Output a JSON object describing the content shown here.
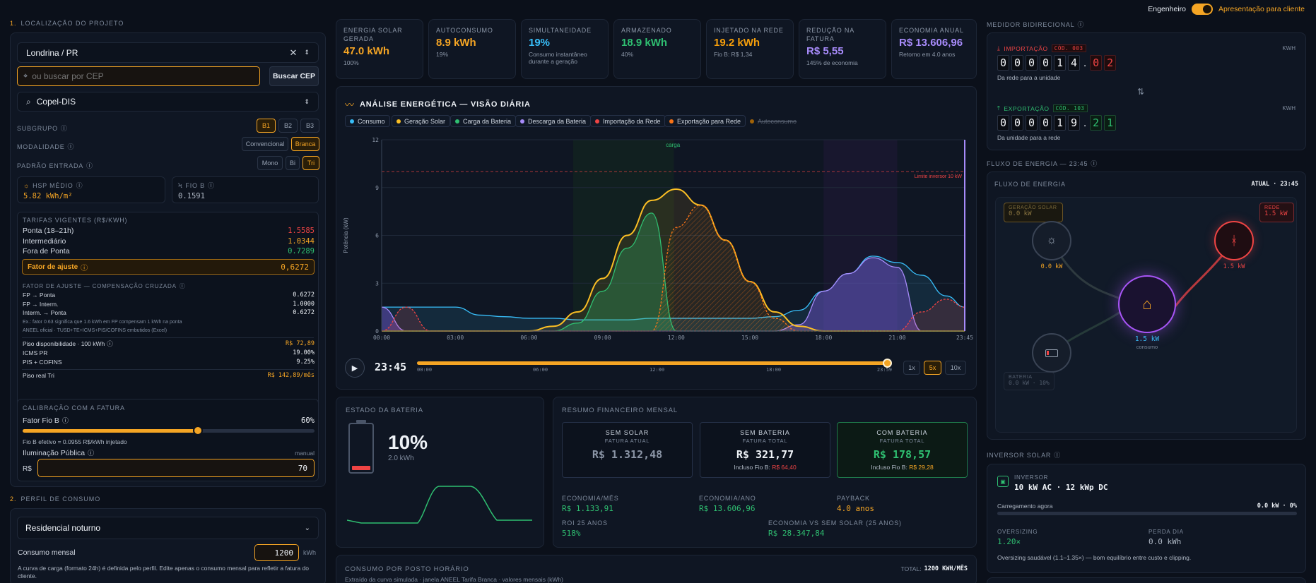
{
  "header": {
    "toggle_label": "Engenheiro",
    "mode_label": "Apresentação para cliente"
  },
  "left": {
    "sec1_num": "1.",
    "sec1_title": "LOCALIZAÇÃO DO PROJETO",
    "city": "Londrina / PR",
    "cep_placeholder": "ou buscar por CEP",
    "cep_button": "Buscar CEP",
    "utility": "Copel-DIS",
    "subgrupo_label": "SUBGRUPO",
    "subgrupo_opts": [
      "B1",
      "B2",
      "B3"
    ],
    "modalidade_label": "MODALIDADE",
    "modalidade_opts": [
      "Convencional",
      "Branca"
    ],
    "padrao_label": "PADRÃO ENTRADA",
    "padrao_opts": [
      "Mono",
      "Bi",
      "Tri"
    ],
    "hsp_label": "HSP MÉDIO",
    "hsp_value": "5.82 kWh/m²",
    "fiob_label": "FIO B",
    "fiob_value": "0.1591",
    "tarifas_title": "TARIFAS VIGENTES (R$/KWH)",
    "tarifas": [
      {
        "name": "Ponta (18–21h)",
        "value": "1.5585"
      },
      {
        "name": "Intermediário",
        "value": "1.0344"
      },
      {
        "name": "Fora de Ponta",
        "value": "0.7289"
      }
    ],
    "fator_label": "Fator de ajuste",
    "fator_value": "0,6272",
    "cruzada_title": "FATOR DE AJUSTE — COMPENSAÇÃO CRUZADA",
    "cruzada": [
      {
        "name": "FP → Ponta",
        "value": "0.6272"
      },
      {
        "name": "FP → Interm.",
        "value": "1.0000"
      },
      {
        "name": "Interm. → Ponta",
        "value": "0.6272"
      }
    ],
    "cruzada_note1": "Ex.: fator 0.63 significa que 1.6 kWh em FP compensam 1 kWh na ponta",
    "cruzada_note2": "ANEEL oficial · TUSD+TE+ICMS+PIS/COFINS embutidos (Excel)",
    "piso_label": "Piso disponibilidade · 100 kWh",
    "piso_value": "R$ 72,89",
    "icms_label": "ICMS PR",
    "icms_value": "19.00%",
    "pis_label": "PIS + COFINS",
    "pis_value": "9.25%",
    "pisoreal_label": "Piso real Tri",
    "pisoreal_value": "R$ 142,89/mês",
    "calib_title": "CALIBRAÇÃO COM A FATURA",
    "fatorfiob_label": "Fator Fio B",
    "fatorfiob_value": "60%",
    "fatorfiob_fraction": 0.6,
    "fiob_efetivo": "Fio B efetivo = 0.0955 R$/kWh injetado",
    "ilum_label": "Iluminação Pública",
    "ilum_mode": "manual",
    "ilum_prefix": "R$",
    "ilum_value": "70",
    "sec2_num": "2.",
    "sec2_title": "PERFIL DE CONSUMO",
    "perfil": "Residencial noturno",
    "consumo_label": "Consumo mensal",
    "consumo_value": "1200",
    "consumo_unit": "kWh",
    "consumo_note": "A curva de carga (formato 24h) é definida pelo perfil. Edite apenas o consumo mensal para refletir a fatura do cliente."
  },
  "kpis": [
    {
      "title": "ENERGIA SOLAR GERADA",
      "value": "47.0 kWh",
      "sub": "100%",
      "color": "#f5a524"
    },
    {
      "title": "AUTOCONSUMO",
      "value": "8.9 kWh",
      "sub": "19%",
      "color": "#f5a524"
    },
    {
      "title": "SIMULTANEIDADE",
      "value": "19%",
      "sub": "Consumo instantâneo durante a geração",
      "color": "#38bdf8"
    },
    {
      "title": "ARMAZENADO",
      "value": "18.9 kWh",
      "sub": "40%",
      "color": "#2fbf71"
    },
    {
      "title": "INJETADO NA REDE",
      "value": "19.2 kWh",
      "sub": "Fio B: R$ 1,34",
      "color": "#f59e0b"
    },
    {
      "title": "REDUÇÃO NA FATURA",
      "value": "R$ 5,55",
      "sub": "145% de economia",
      "color": "#a78bfa"
    },
    {
      "title": "ECONOMIA ANUAL",
      "value": "R$ 13.606,96",
      "sub": "Retorno em 4.0 anos",
      "color": "#a78bfa"
    }
  ],
  "chart": {
    "title": "ANÁLISE ENERGÉTICA — VISÃO DIÁRIA",
    "legend": [
      {
        "name": "Consumo",
        "color": "#38bdf8"
      },
      {
        "name": "Geração Solar",
        "color": "#fbbf24"
      },
      {
        "name": "Carga da Bateria",
        "color": "#2fbf71"
      },
      {
        "name": "Descarga da Bateria",
        "color": "#a78bfa"
      },
      {
        "name": "Importação da Rede",
        "color": "#ef4444"
      },
      {
        "name": "Exportação para Rede",
        "color": "#f97316"
      },
      {
        "name": "Autoconsumo",
        "color": "#a16207"
      }
    ],
    "ylabel": "Potência (kW)",
    "limit_label": "Limite inversor 10 kW",
    "band_label": "carga",
    "time": "23:45",
    "timeline_ticks": [
      "00:00",
      "06:00",
      "12:00",
      "18:00",
      "23:59"
    ],
    "speeds": [
      "1x",
      "5x",
      "10x"
    ],
    "progress_fraction": 0.99
  },
  "chart_data": {
    "type": "area",
    "x": [
      "00:00",
      "01:00",
      "02:00",
      "03:00",
      "04:00",
      "05:00",
      "06:00",
      "07:00",
      "08:00",
      "09:00",
      "10:00",
      "11:00",
      "12:00",
      "13:00",
      "14:00",
      "15:00",
      "16:00",
      "17:00",
      "18:00",
      "19:00",
      "20:00",
      "21:00",
      "22:00",
      "23:00",
      "23:45"
    ],
    "xticks": [
      "00:00",
      "03:00",
      "06:00",
      "09:00",
      "12:00",
      "15:00",
      "18:00",
      "21:00",
      "23:45"
    ],
    "ylim": [
      0,
      12
    ],
    "yticks": [
      0,
      3,
      6,
      9,
      12
    ],
    "limit": 10,
    "series": [
      {
        "name": "Consumo",
        "values": [
          1.5,
          1.5,
          1.5,
          1.5,
          1.0,
          0.9,
          0.8,
          0.8,
          0.7,
          0.7,
          0.7,
          0.8,
          0.8,
          0.8,
          0.8,
          0.8,
          0.9,
          1.3,
          2.5,
          3.6,
          4.7,
          4.3,
          3.5,
          2.2,
          1.5
        ]
      },
      {
        "name": "Geração Solar",
        "values": [
          0,
          0,
          0,
          0,
          0,
          0,
          0,
          0.3,
          1.2,
          3.3,
          6.0,
          8.2,
          8.9,
          7.9,
          5.7,
          3.1,
          1.2,
          0.3,
          0,
          0,
          0,
          0,
          0,
          0,
          0
        ]
      },
      {
        "name": "Carga da Bateria",
        "values": [
          0,
          0,
          0,
          0,
          0,
          0,
          0,
          0,
          0.5,
          2.5,
          5.2,
          7.4,
          0,
          0,
          0,
          0,
          0,
          0,
          0,
          0,
          0,
          0,
          0,
          0,
          0
        ]
      },
      {
        "name": "Descarga da Bateria",
        "values": [
          1.5,
          0,
          0,
          0,
          0,
          0,
          0,
          0,
          0,
          0,
          0,
          0,
          0,
          0,
          0,
          0,
          0,
          0.4,
          2.5,
          3.6,
          4.6,
          4.0,
          0,
          0,
          0
        ]
      },
      {
        "name": "Importação da Rede",
        "values": [
          0,
          1.5,
          0,
          0,
          0,
          0,
          0,
          0,
          0,
          0,
          0,
          0,
          0,
          0,
          0,
          0,
          0,
          0,
          0,
          0,
          0,
          0,
          1.2,
          2.0,
          1.5
        ]
      },
      {
        "name": "Exportação para Rede",
        "values": [
          0,
          0,
          0,
          0,
          0,
          0,
          0,
          0,
          0,
          0,
          0,
          0,
          6.5,
          7.9,
          5.7,
          3.1,
          0.8,
          0,
          0,
          0,
          0,
          0,
          0,
          0,
          0
        ]
      }
    ]
  },
  "meter": {
    "title": "MEDIDOR BIDIRECIONAL",
    "unit": "KWH",
    "imp_label": "IMPORTAÇÃO",
    "imp_code": "CÓD. 003",
    "imp_digits": [
      "0",
      "0",
      "0",
      "0",
      "1",
      "4"
    ],
    "imp_dec": [
      "0",
      "2"
    ],
    "imp_desc": "Da rede para a unidade",
    "exp_label": "EXPORTAÇÃO",
    "exp_code": "CÓD. 103",
    "exp_digits": [
      "0",
      "0",
      "0",
      "0",
      "1",
      "9"
    ],
    "exp_dec": [
      "2",
      "1"
    ],
    "exp_desc": "Da unidade para a rede"
  },
  "flow": {
    "section_title": "FLUXO DE ENERGIA — 23:45",
    "card_title": "FLUXO DE ENERGIA",
    "status": "ATUAL · 23:45",
    "solar_label": "GERAÇÃO SOLAR",
    "solar_value": "0.0 kW",
    "grid_label": "REDE",
    "grid_value": "1.5 kW",
    "solar_node": "0.0 kW",
    "grid_node": "1.5 kW",
    "home_value": "1.5 kW",
    "home_label": "consumo",
    "battery_label": "BATERIA",
    "battery_value": "0.0 kW · 10%"
  },
  "inverter": {
    "section_title": "INVERSOR SOLAR",
    "label": "INVERSOR",
    "spec": "10 kW AC · 12 kWp DC",
    "load_label": "Carregamento agora",
    "load_value": "0.0 kW · 0%",
    "oversizing_label": "OVERSIZING",
    "oversizing_value": "1.20×",
    "perda_label": "PERDA DIA",
    "perda_value": "0.0 kWh",
    "note": "Oversizing saudável (1.1–1.35×) — bom equilíbrio entre custo e clipping."
  },
  "battery": {
    "title": "ESTADO DA BATERIA",
    "percent": "10%",
    "energy": "2.0 kWh",
    "level_fraction": 0.1
  },
  "finance": {
    "title": "RESUMO FINANCEIRO MENSAL",
    "cards": [
      {
        "h": "SEM SOLAR",
        "hs": "FATURA ATUAL",
        "value": "R$ 1.312,48",
        "foot": ""
      },
      {
        "h": "SEM BATERIA",
        "hs": "FATURA TOTAL",
        "value": "R$ 321,77",
        "foot_label": "Incluso Fio B:",
        "foot": "R$ 64,40"
      },
      {
        "h": "COM BATERIA",
        "hs": "FATURA TOTAL",
        "value": "R$ 178,57",
        "foot_label": "Incluso Fio B:",
        "foot": "R$ 29,28"
      }
    ],
    "eco_mes_label": "ECONOMIA/MÊS",
    "eco_mes": "R$ 1.133,91",
    "eco_ano_label": "ECONOMIA/ANO",
    "eco_ano": "R$ 13.606,96",
    "payback_label": "PAYBACK",
    "payback": "4.0 anos",
    "roi_label": "ROI 25 ANOS",
    "roi": "518%",
    "eco_vs_label": "ECONOMIA VS SEM SOLAR (25 ANOS)",
    "eco_vs": "R$ 28.347,84"
  },
  "posto": {
    "title": "CONSUMO POR POSTO HORÁRIO",
    "sub": "Extraído da curva simulada · janela ANEEL Tarifa Branca · valores mensais (kWh)",
    "total_label": "TOTAL:",
    "total_value": "1200 KWH/MÊS"
  }
}
